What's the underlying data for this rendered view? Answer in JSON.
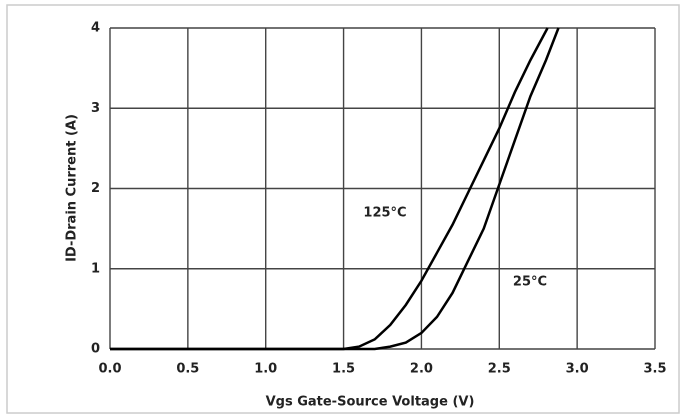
{
  "chart_data": {
    "type": "line",
    "xlabel": "Vgs Gate-Source Voltage (V)",
    "ylabel": "ID-Drain Current (A)",
    "xlim": [
      0,
      3.5
    ],
    "xticks": [
      {
        "value": 0,
        "label": "0.0"
      },
      0.5,
      {
        "value": 1,
        "label": "1.0"
      },
      1.5,
      {
        "value": 2,
        "label": "2.0"
      },
      2.5,
      {
        "value": 3,
        "label": "3.0"
      },
      3.5
    ],
    "ylim": [
      0,
      4
    ],
    "yticks": [
      0,
      1,
      2,
      3,
      4
    ],
    "grid": true,
    "series": [
      {
        "name": "125°C",
        "color": "#000000",
        "x": [
          0,
          1.5,
          1.6,
          1.7,
          1.8,
          1.9,
          2.0,
          2.1,
          2.2,
          2.3,
          2.4,
          2.5,
          2.6,
          2.7,
          2.81
        ],
        "values": [
          0,
          0,
          0.03,
          0.12,
          0.3,
          0.55,
          0.85,
          1.2,
          1.55,
          1.95,
          2.35,
          2.75,
          3.2,
          3.6,
          4.0
        ]
      },
      {
        "name": "25°C",
        "color": "#000000",
        "x": [
          0,
          1.7,
          1.8,
          1.9,
          2.0,
          2.1,
          2.2,
          2.3,
          2.4,
          2.5,
          2.6,
          2.7,
          2.8,
          2.88
        ],
        "values": [
          0,
          0,
          0.03,
          0.08,
          0.2,
          0.4,
          0.7,
          1.1,
          1.5,
          2.05,
          2.6,
          3.15,
          3.6,
          4.0
        ]
      }
    ]
  }
}
